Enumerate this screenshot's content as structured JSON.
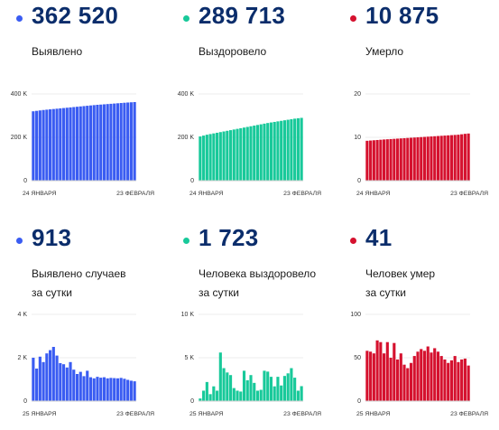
{
  "colors": {
    "blue": "#3a5cf2",
    "teal": "#18c99a",
    "red": "#d5112e",
    "number": "#0b2d6b"
  },
  "panels": [
    {
      "value": "362 520",
      "label": [
        "Выявлено"
      ],
      "color": "#3a5cf2"
    },
    {
      "value": "289 713",
      "label": [
        "Выздоровело"
      ],
      "color": "#18c99a"
    },
    {
      "value": "10 875",
      "label": [
        "Умерло"
      ],
      "color": "#d5112e"
    },
    {
      "value": "913",
      "label": [
        "Выявлено случаев",
        "за сутки"
      ],
      "color": "#3a5cf2"
    },
    {
      "value": "1 723",
      "label": [
        "Человека выздоровело",
        "за сутки"
      ],
      "color": "#18c99a"
    },
    {
      "value": "41",
      "label": [
        "Человек умер",
        "за сутки"
      ],
      "color": "#d5112e"
    }
  ],
  "chart_data": [
    {
      "type": "bar",
      "title": "Выявлено",
      "x_start": "24 ЯНВАРЯ",
      "x_end": "23 ФЕВРАЛЯ",
      "yticks": [
        "0",
        "200 K",
        "400 K"
      ],
      "ylim": [
        0,
        400000
      ],
      "color": "#3a5cf2",
      "values": [
        320000,
        322000,
        324000,
        326000,
        327500,
        329000,
        330500,
        332000,
        333500,
        335000,
        336500,
        338000,
        339500,
        341000,
        342500,
        344000,
        345500,
        347000,
        348500,
        350000,
        351000,
        352200,
        353400,
        354600,
        355800,
        357000,
        358200,
        359400,
        360500,
        361500,
        362520
      ]
    },
    {
      "type": "bar",
      "title": "Выздоровело",
      "x_start": "24 ЯНВАРЯ",
      "x_end": "23 ФЕВРАЛЯ",
      "yticks": [
        "0",
        "200 K",
        "400 K"
      ],
      "ylim": [
        0,
        400000
      ],
      "color": "#18c99a",
      "values": [
        204000,
        208000,
        212000,
        215000,
        218000,
        221000,
        224000,
        227000,
        230000,
        233000,
        236000,
        239000,
        242000,
        245000,
        248000,
        251000,
        254000,
        257000,
        260000,
        263000,
        266000,
        268500,
        271000,
        273500,
        276000,
        278500,
        281000,
        283500,
        286000,
        288000,
        289713
      ]
    },
    {
      "type": "bar",
      "title": "Умерло",
      "x_start": "24 ЯНВАРЯ",
      "x_end": "23 ФЕВРАЛЯ",
      "yticks": [
        "0",
        "10",
        "20"
      ],
      "ylim": [
        0,
        20
      ],
      "color": "#d5112e",
      "values": [
        9.2,
        9.26,
        9.32,
        9.38,
        9.44,
        9.5,
        9.55,
        9.6,
        9.65,
        9.7,
        9.75,
        9.8,
        9.85,
        9.9,
        9.95,
        10.0,
        10.05,
        10.1,
        10.15,
        10.2,
        10.25,
        10.3,
        10.35,
        10.4,
        10.45,
        10.5,
        10.55,
        10.6,
        10.7,
        10.8,
        10.875
      ]
    },
    {
      "type": "bar",
      "title": "Выявлено случаев за сутки",
      "x_start": "25 ЯНВАРЯ",
      "x_end": "23 ФЕВРАЛЯ",
      "yticks": [
        "0",
        "2 K",
        "4 K"
      ],
      "ylim": [
        0,
        4000
      ],
      "color": "#3a5cf2",
      "values": [
        2000,
        1500,
        2050,
        1800,
        2200,
        2350,
        2500,
        2100,
        1750,
        1700,
        1550,
        1800,
        1450,
        1250,
        1350,
        1150,
        1400,
        1100,
        1050,
        1120,
        1080,
        1100,
        1050,
        1070,
        1060,
        1050,
        1070,
        1030,
        980,
        940,
        913
      ]
    },
    {
      "type": "bar",
      "title": "Человека выздоровело за сутки",
      "x_start": "25 ЯНВАРЯ",
      "x_end": "23 ФЕВРАЛЯ",
      "yticks": [
        "0",
        "5 K",
        "10 K"
      ],
      "ylim": [
        0,
        10000
      ],
      "color": "#18c99a",
      "values": [
        300,
        1200,
        2200,
        800,
        1700,
        1200,
        5600,
        3800,
        3300,
        3000,
        1500,
        1200,
        1100,
        3500,
        2400,
        3000,
        2100,
        1200,
        1300,
        3500,
        3400,
        2800,
        1700,
        2800,
        1800,
        2900,
        3200,
        3800,
        2700,
        1200,
        1723
      ]
    },
    {
      "type": "bar",
      "title": "Человек умер за сутки",
      "x_start": "25 ЯНВАРЯ",
      "x_end": "23 ФЕВРАЛЯ",
      "yticks": [
        "0",
        "50",
        "100"
      ],
      "ylim": [
        0,
        100
      ],
      "color": "#d5112e",
      "values": [
        58,
        57,
        55,
        70,
        68,
        55,
        68,
        50,
        67,
        48,
        55,
        42,
        38,
        44,
        52,
        57,
        60,
        58,
        63,
        56,
        61,
        57,
        52,
        48,
        44,
        47,
        52,
        45,
        48,
        49,
        41
      ]
    }
  ]
}
